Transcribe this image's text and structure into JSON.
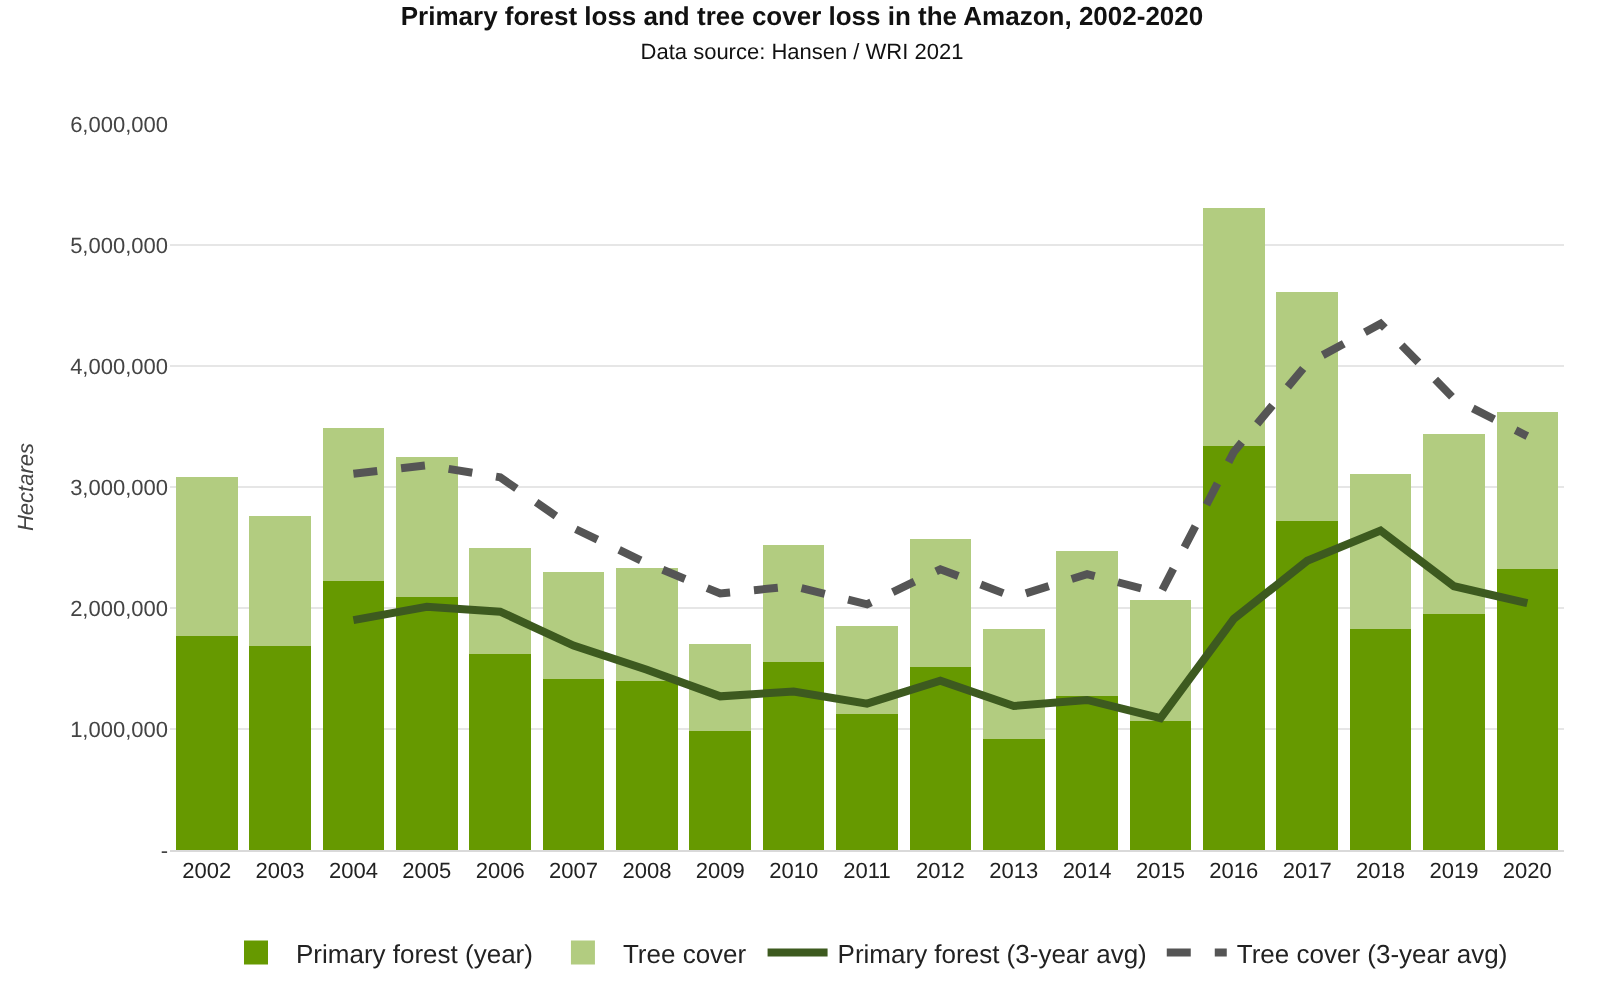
{
  "chart_data": {
    "type": "bar",
    "title": "Primary forest loss and tree cover loss in the Amazon, 2002-2020",
    "subtitle": "Data source: Hansen / WRI 2021",
    "ylabel": "Hectares",
    "categories": [
      "2002",
      "2003",
      "2004",
      "2005",
      "2006",
      "2007",
      "2008",
      "2009",
      "2010",
      "2011",
      "2012",
      "2013",
      "2014",
      "2015",
      "2016",
      "2017",
      "2018",
      "2019",
      "2020"
    ],
    "stacked": true,
    "grid": "y",
    "legend": "bottom",
    "marker": "none",
    "ylim": [
      0,
      6000000
    ],
    "yticks": [
      {
        "value": 0,
        "label": "-"
      },
      {
        "value": 1000000,
        "label": "1,000,000"
      },
      {
        "value": 2000000,
        "label": "2,000,000"
      },
      {
        "value": 3000000,
        "label": "3,000,000"
      },
      {
        "value": 4000000,
        "label": "4,000,000"
      },
      {
        "value": 5000000,
        "label": "5,000,000"
      },
      {
        "value": 6000000,
        "label": "6,000,000"
      }
    ],
    "series": [
      {
        "name": "Primary forest (year)",
        "color": "#669900",
        "values": [
          1770000,
          1690000,
          2220000,
          2090000,
          1620000,
          1410000,
          1400000,
          980000,
          1550000,
          1120000,
          1510000,
          920000,
          1270000,
          1070000,
          3340000,
          2720000,
          1830000,
          1950000,
          2320000
        ]
      },
      {
        "name": "Tree cover",
        "color": "#b2cc80",
        "values": [
          1310000,
          1070000,
          1270000,
          1160000,
          880000,
          890000,
          930000,
          720000,
          970000,
          730000,
          1060000,
          910000,
          1200000,
          1000000,
          1970000,
          1890000,
          1280000,
          1490000,
          1300000
        ]
      },
      {
        "name": "Primary forest (3-year avg)",
        "type": "line",
        "color": "#3d5a1f",
        "line_style": "solid",
        "values": [
          null,
          null,
          1900000,
          2010000,
          1970000,
          1690000,
          1490000,
          1270000,
          1310000,
          1210000,
          1400000,
          1190000,
          1240000,
          1090000,
          1910000,
          2390000,
          2640000,
          2180000,
          2040000
        ]
      },
      {
        "name": "Tree cover (3-year avg)",
        "type": "line",
        "color": "#555555",
        "line_style": "dashed",
        "values": [
          null,
          null,
          3110000,
          3180000,
          3080000,
          2660000,
          2370000,
          2120000,
          2180000,
          2030000,
          2320000,
          2090000,
          2280000,
          2120000,
          3290000,
          4020000,
          4350000,
          3730000,
          3420000
        ]
      }
    ]
  }
}
